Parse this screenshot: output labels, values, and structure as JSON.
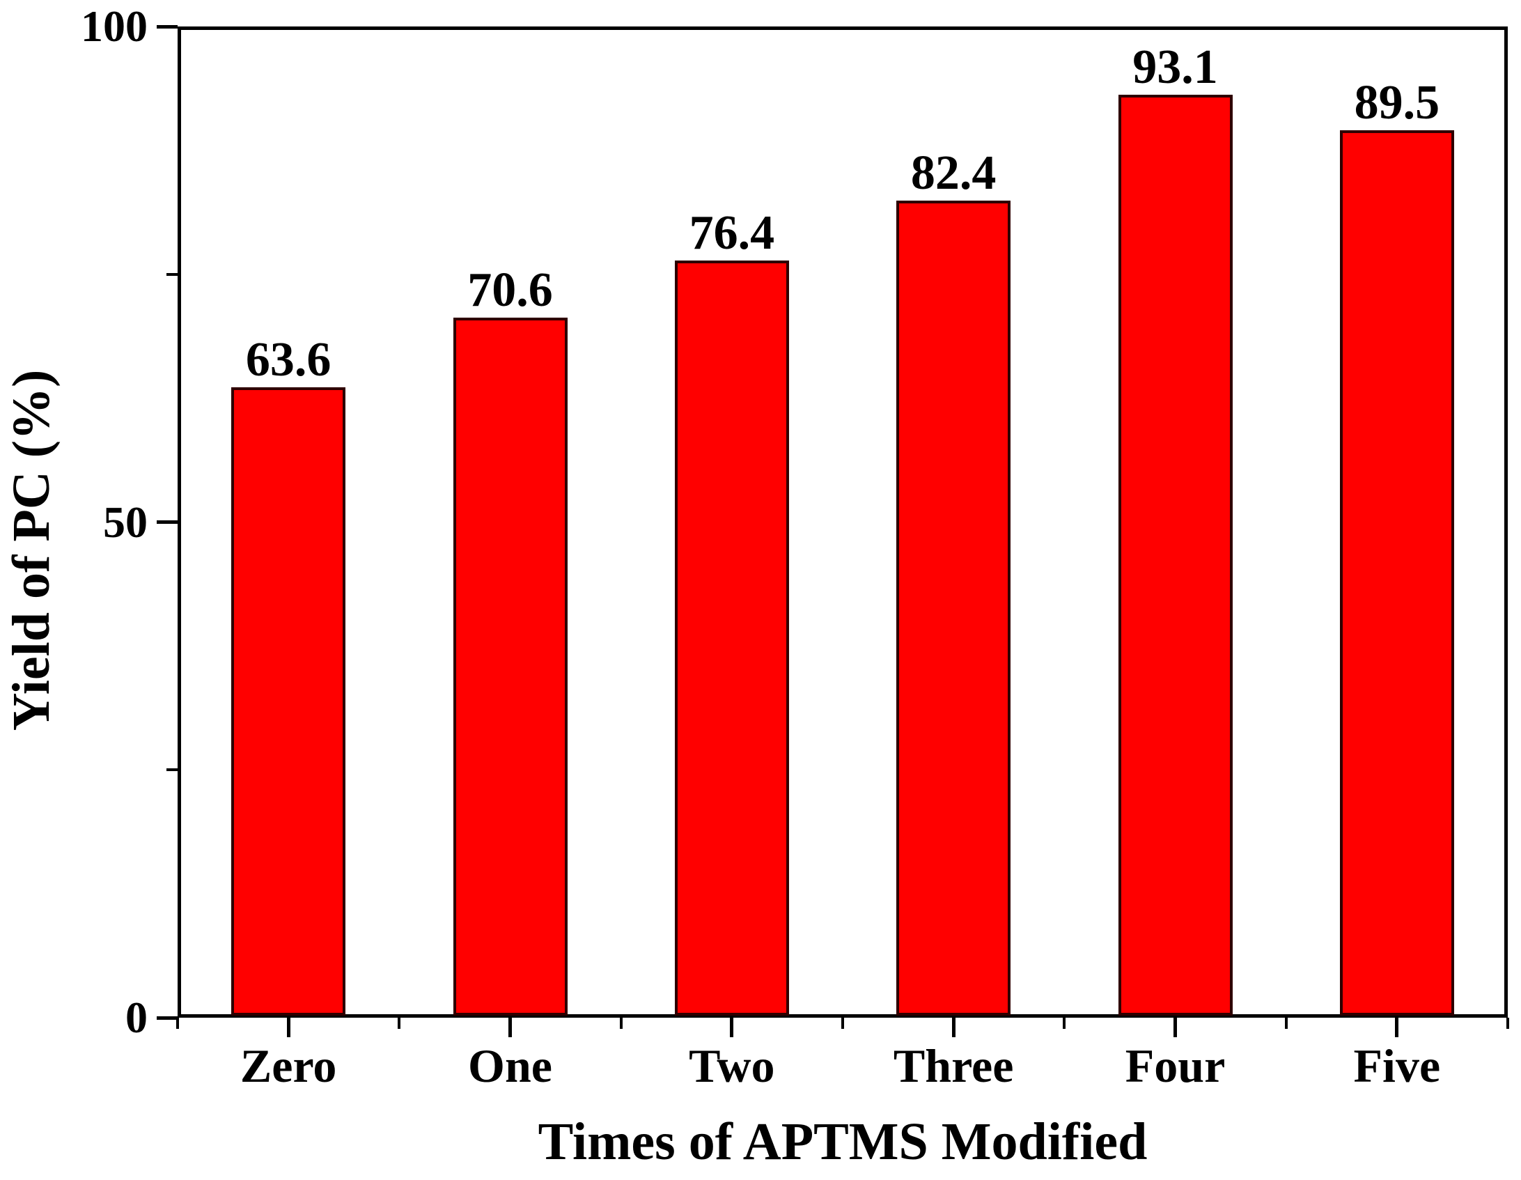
{
  "chart_data": {
    "type": "bar",
    "title": "",
    "categories": [
      "Zero",
      "One",
      "Two",
      "Three",
      "Four",
      "Five"
    ],
    "values": [
      63.6,
      70.6,
      76.4,
      82.4,
      93.1,
      89.5
    ],
    "bar_labels": [
      "63.6",
      "70.6",
      "76.4",
      "82.4",
      "93.1",
      "89.5"
    ],
    "xlabel": "Times of APTMS Modified",
    "ylabel": "Yield of PC (%)",
    "ylim": [
      0,
      100
    ],
    "y_major_ticks": [
      {
        "value": 0,
        "label": "0"
      },
      {
        "value": 50,
        "label": "50"
      },
      {
        "value": 100,
        "label": "100"
      }
    ],
    "y_minor_ticks": [
      25,
      75
    ],
    "grid": "off",
    "legend": "none",
    "frame": "full-box",
    "colors": {
      "bar_fill": "#ff0000",
      "bar_border": "#2e0000",
      "axis": "#000000",
      "text": "#000000",
      "background": "#ffffff"
    }
  }
}
